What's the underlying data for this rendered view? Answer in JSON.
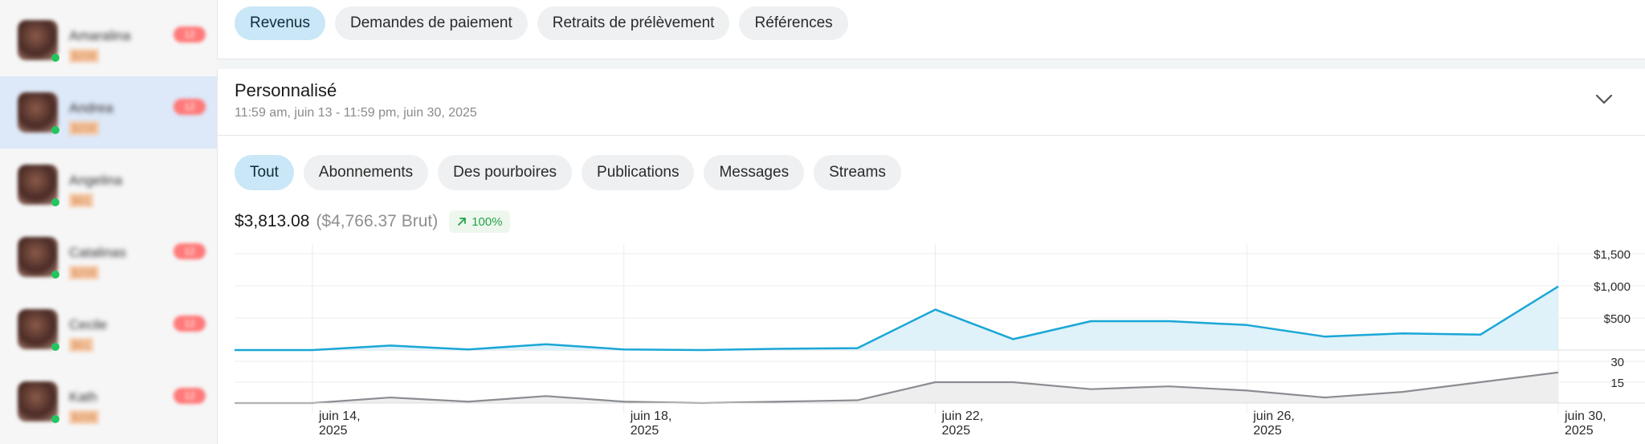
{
  "sidebar": {
    "items": [
      {
        "name": "Amaralina",
        "sub": "$208",
        "badge": "12",
        "active": false
      },
      {
        "name": "Andrea",
        "sub": "$208",
        "badge": "12",
        "active": true
      },
      {
        "name": "Angelina",
        "sub": "$61",
        "badge": "",
        "active": false
      },
      {
        "name": "Catalinas",
        "sub": "$208",
        "badge": "12",
        "active": false
      },
      {
        "name": "Cecile",
        "sub": "$61",
        "badge": "12",
        "active": false
      },
      {
        "name": "Kath",
        "sub": "$208",
        "badge": "12",
        "active": false
      }
    ]
  },
  "top_tabs": [
    "Revenus",
    "Demandes de paiement",
    "Retraits de prélèvement",
    "Références"
  ],
  "top_tab_active": "Revenus",
  "range": {
    "title": "Personnalisé",
    "subtitle": "11:59 am, juin 13 - 11:59 pm, juin 30, 2025"
  },
  "filters": [
    "Tout",
    "Abonnements",
    "Des pourboires",
    "Publications",
    "Messages",
    "Streams"
  ],
  "filter_active": "Tout",
  "totals": {
    "net": "$3,813.08",
    "gross": "($4,766.37 Brut)",
    "trend": "100%"
  },
  "colors": {
    "accent": "#1aa7d6",
    "secondary_line": "#8a8d91",
    "trend_up": "#22a447"
  },
  "icons": {
    "range_toggle": "chevron-down-icon",
    "trend": "arrow-up-right-icon"
  },
  "chart_data": [
    {
      "type": "area",
      "x": [
        "juin 13",
        "juin 14",
        "juin 15",
        "juin 16",
        "juin 17",
        "juin 18",
        "juin 19",
        "juin 20",
        "juin 21",
        "juin 22",
        "juin 23",
        "juin 24",
        "juin 25",
        "juin 26",
        "juin 27",
        "juin 28",
        "juin 29",
        "juin 30"
      ],
      "values": [
        0,
        0,
        70,
        10,
        90,
        10,
        0,
        20,
        30,
        630,
        170,
        450,
        450,
        390,
        210,
        260,
        240,
        990
      ],
      "yticks": [
        "$1,500",
        "$1,000",
        "$500"
      ],
      "ytick_values": [
        1500,
        1000,
        500
      ],
      "ylim": [
        0,
        1500
      ],
      "grid": true
    },
    {
      "type": "area",
      "x": [
        "juin 13",
        "juin 14",
        "juin 15",
        "juin 16",
        "juin 17",
        "juin 18",
        "juin 19",
        "juin 20",
        "juin 21",
        "juin 22",
        "juin 23",
        "juin 24",
        "juin 25",
        "juin 26",
        "juin 27",
        "juin 28",
        "juin 29",
        "juin 30"
      ],
      "values": [
        0,
        0,
        4,
        1,
        5,
        1,
        0,
        1,
        2,
        15,
        15,
        10,
        12,
        9,
        4,
        8,
        15,
        22
      ],
      "yticks": [
        "30",
        "15"
      ],
      "ytick_values": [
        30,
        15
      ],
      "ylim": [
        0,
        30
      ],
      "grid": true
    }
  ],
  "x_axis_labels": [
    {
      "day": "juin 14,",
      "year": "2025"
    },
    {
      "day": "juin 18,",
      "year": "2025"
    },
    {
      "day": "juin 22,",
      "year": "2025"
    },
    {
      "day": "juin 26,",
      "year": "2025"
    },
    {
      "day": "juin 30,",
      "year": "2025"
    }
  ]
}
